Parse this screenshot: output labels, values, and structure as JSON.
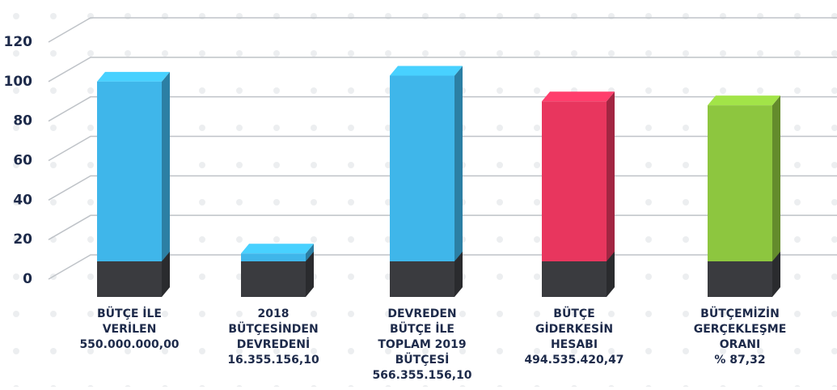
{
  "chart_data": {
    "type": "bar3d",
    "categories": [
      [
        "BÜTÇE İLE",
        "VERİLEN",
        "550.000.000,00"
      ],
      [
        "2018",
        "BÜTÇESİNDEN",
        "DEVREDENİ",
        "16.355.156,10"
      ],
      [
        "DEVREDEN",
        "BÜTÇE İLE",
        "TOPLAM 2019",
        "BÜTÇESİ",
        "566.355.156,10"
      ],
      [
        "BÜTÇE",
        "GİDERKESİN",
        "HESABI",
        "494.535.420,47"
      ],
      [
        "BÜTÇEMİZİN",
        "GERÇEKLEŞME",
        "ORANI",
        "% 87,32"
      ]
    ],
    "values": [
      100,
      13,
      103,
      90,
      88
    ],
    "colors": [
      "#3fb6ea",
      "#3fb6ea",
      "#3fb6ea",
      "#e8365e",
      "#8dc63f"
    ],
    "ylim": [
      0,
      120
    ],
    "yticks": [
      0,
      20,
      40,
      60,
      80,
      100,
      120
    ],
    "grid": true
  }
}
